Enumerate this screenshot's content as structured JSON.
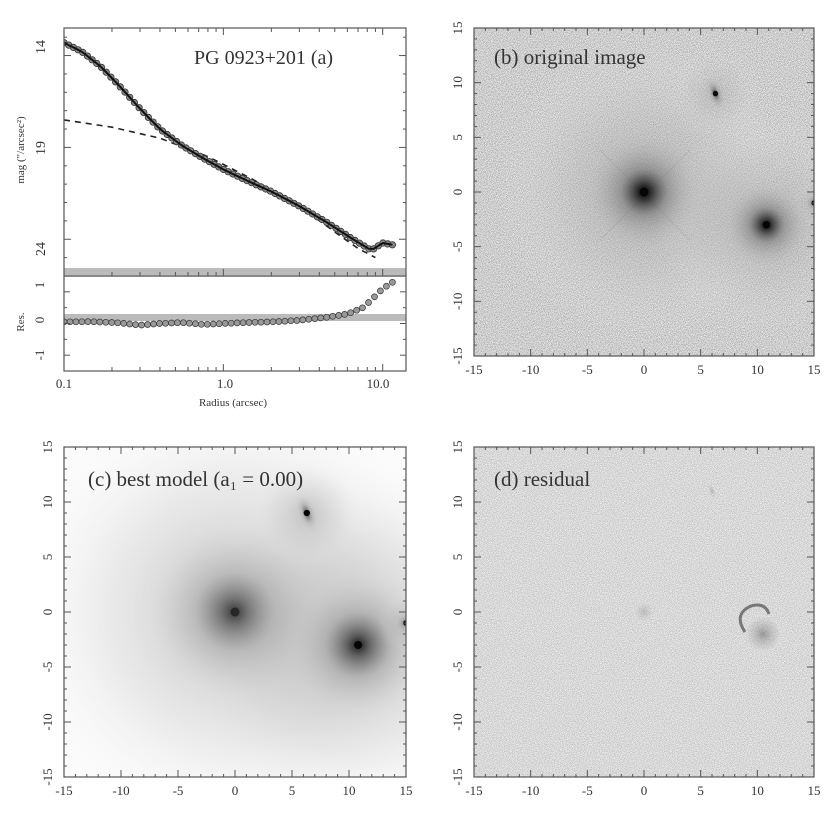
{
  "figure": {
    "panel_a": {
      "label": "PG 0923+201 (a)",
      "ylabel": "mag (\"/arcsec²)",
      "res_ylabel": "Res.",
      "xlabel": "Radius (arcsec)",
      "y_ticks": [
        "14",
        "19",
        "24"
      ],
      "res_ticks": [
        "1",
        "0",
        "-1"
      ],
      "x_ticks": [
        "0.1",
        "1.0",
        "10.0"
      ]
    },
    "panel_b": {
      "label": "(b) original image"
    },
    "panel_c": {
      "label": "(c) best model (a₁ = 0.00)"
    },
    "panel_d": {
      "label": "(d) residual"
    },
    "image_axis_ticks": [
      "-15",
      "-10",
      "-5",
      "0",
      "5",
      "10",
      "15"
    ]
  },
  "chart_data": [
    {
      "type": "scatter",
      "title": "PG 0923+201 (a)",
      "xlabel": "Radius (arcsec)",
      "ylabel": "mag (\"/arcsec²)",
      "x_scale": "log",
      "xlim": [
        0.1,
        14
      ],
      "ylim": [
        12.5,
        26
      ],
      "y_inverted": true,
      "series": [
        {
          "name": "",
          "x": [
            0.1,
            0.13,
            0.17,
            0.22,
            0.3,
            0.4,
            0.55,
            0.75,
            1.0,
            1.4,
            2.0,
            3.0,
            4.5,
            6.5,
            8.5,
            10,
            11.5
          ],
          "y": [
            13.3,
            13.8,
            14.6,
            15.6,
            16.9,
            18.0,
            18.9,
            19.6,
            20.2,
            20.8,
            21.4,
            22.2,
            23.1,
            24.0,
            24.6,
            24.2,
            24.3
          ]
        },
        {
          "name": "",
          "x": [
            0.1,
            0.2,
            0.4,
            0.8,
            1.5,
            3.0,
            5.0,
            7.0,
            9.0
          ],
          "y": [
            17.5,
            17.9,
            18.5,
            19.5,
            20.7,
            22.2,
            23.6,
            24.5,
            25.0
          ]
        }
      ],
      "residual": {
        "ylabel": "Res.",
        "ylim": [
          -1.5,
          1.5
        ],
        "x": [
          0.1,
          0.15,
          0.22,
          0.3,
          0.4,
          0.55,
          0.75,
          1.0,
          1.4,
          2.0,
          3.0,
          4.5,
          6.0,
          7.5,
          8.5,
          10,
          11.5
        ],
        "y": [
          0.05,
          0.06,
          0.02,
          -0.05,
          0.0,
          0.03,
          -0.03,
          0.0,
          0.03,
          0.05,
          0.1,
          0.2,
          0.3,
          0.5,
          0.75,
          1.1,
          1.3
        ]
      }
    },
    {
      "type": "heatmap",
      "title": "(b) original image",
      "xlim": [
        -15,
        15
      ],
      "ylim": [
        -15,
        15
      ],
      "sources": [
        {
          "x": 0,
          "y": 0,
          "brightness": 1.0,
          "extent": 4.0
        },
        {
          "x": 10.8,
          "y": -3.0,
          "brightness": 0.85,
          "extent": 3.0
        },
        {
          "x": 6.3,
          "y": 9.0,
          "brightness": 0.6,
          "extent": 1.2
        },
        {
          "x": 15.0,
          "y": -1.0,
          "brightness": 0.5,
          "extent": 0.6
        }
      ]
    },
    {
      "type": "heatmap",
      "title": "(c) best model (a₁ = 0.00)",
      "xlim": [
        -15,
        15
      ],
      "ylim": [
        -15,
        15
      ],
      "sources": [
        {
          "x": 0,
          "y": 0,
          "brightness": 1.0,
          "extent": 6.0
        },
        {
          "x": 10.8,
          "y": -3.0,
          "brightness": 0.9,
          "extent": 5.0
        },
        {
          "x": 6.3,
          "y": 9.0,
          "brightness": 0.7,
          "extent": 1.5
        },
        {
          "x": 15.0,
          "y": -1.0,
          "brightness": 0.6,
          "extent": 0.8
        }
      ]
    },
    {
      "type": "heatmap",
      "title": "(d) residual",
      "xlim": [
        -15,
        15
      ],
      "ylim": [
        -15,
        15
      ],
      "sources": [
        {
          "x": 10.5,
          "y": -2.0,
          "brightness": 0.6,
          "extent": 1.5
        },
        {
          "x": 6.0,
          "y": 11.0,
          "brightness": 0.3,
          "extent": 0.6
        },
        {
          "x": 0.0,
          "y": 0.0,
          "brightness": 0.25,
          "extent": 0.8
        }
      ]
    }
  ]
}
